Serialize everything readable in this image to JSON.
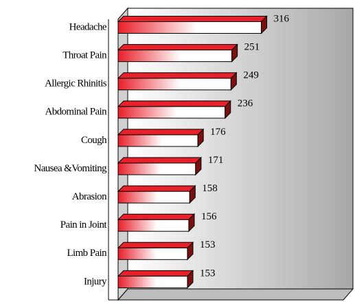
{
  "chart_data": {
    "type": "bar",
    "orientation": "horizontal",
    "categories": [
      "Headache",
      "Throat Pain",
      "Allergic Rhinitis",
      "Abdominal Pain",
      "Cough",
      "Nausea &Vomiting",
      "Abrasion",
      "Pain in Joint",
      "Limb Pain",
      "Injury"
    ],
    "values": [
      316,
      251,
      249,
      236,
      176,
      171,
      158,
      156,
      153,
      153
    ],
    "color": "#e8202a"
  }
}
